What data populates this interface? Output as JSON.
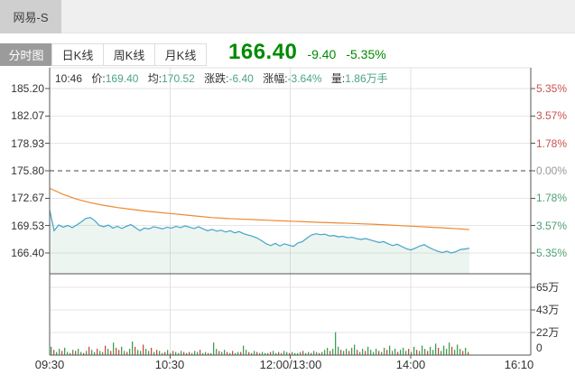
{
  "window": {
    "tab_label": "网易-S"
  },
  "toolbar": {
    "tabs": [
      {
        "label": "分时图",
        "active": true
      },
      {
        "label": "日K线",
        "active": false
      },
      {
        "label": "周K线",
        "active": false
      },
      {
        "label": "月K线",
        "active": false
      }
    ]
  },
  "quote": {
    "price": "166.40",
    "change": "-9.40",
    "change_pct": "-5.35%",
    "color": "#008a00"
  },
  "info_bar": {
    "time": "10:46",
    "items": [
      {
        "label": "价:",
        "value": "169.40"
      },
      {
        "label": "均:",
        "value": "170.52"
      },
      {
        "label": "涨跌:",
        "value": "-6.40"
      },
      {
        "label": "涨幅:",
        "value": "-3.64%"
      },
      {
        "label": "量:",
        "value": "1.86万手"
      }
    ],
    "value_color": "#4ba582"
  },
  "chart_data": {
    "type": "line",
    "title": "网易-S 分时图",
    "prev_close": 175.8,
    "grid": true,
    "y_axis_left": {
      "labels": [
        "185.20",
        "182.07",
        "178.93",
        "175.80",
        "172.67",
        "169.53",
        "166.40"
      ],
      "values": [
        185.2,
        182.07,
        178.93,
        175.8,
        172.67,
        169.53,
        166.4
      ]
    },
    "y_axis_right": {
      "labels": [
        {
          "text": "5.35%",
          "color": "#c9514d"
        },
        {
          "text": "3.57%",
          "color": "#c9514d"
        },
        {
          "text": "1.78%",
          "color": "#c9514d"
        },
        {
          "text": "0.00%",
          "color": "#999999"
        },
        {
          "text": "1.78%",
          "color": "#4e9e73"
        },
        {
          "text": "3.57%",
          "color": "#4e9e73"
        },
        {
          "text": "5.35%",
          "color": "#4e9e73"
        }
      ]
    },
    "x_axis": {
      "labels": [
        "09:30",
        "10:30",
        "12:00/13:00",
        "14:00",
        "16:10"
      ]
    },
    "series": [
      {
        "name": "price",
        "color": "#44a3c9",
        "x_start": 55,
        "x_step": 5,
        "values": [
          171.3,
          168.95,
          169.6,
          169.35,
          169.55,
          169.3,
          169.6,
          169.95,
          170.35,
          170.45,
          170.1,
          169.55,
          169.4,
          169.6,
          169.25,
          169.45,
          169.2,
          169.45,
          169.65,
          169.3,
          168.95,
          169.25,
          169.15,
          169.4,
          169.3,
          169.15,
          169.35,
          169.25,
          169.45,
          169.3,
          169.5,
          169.35,
          169.2,
          169.4,
          169.15,
          168.95,
          169.1,
          168.9,
          169.0,
          168.8,
          168.95,
          168.7,
          168.85,
          168.6,
          168.45,
          168.3,
          168.1,
          167.8,
          167.45,
          167.25,
          167.5,
          167.2,
          167.45,
          167.3,
          167.15,
          167.55,
          167.7,
          168.1,
          168.45,
          168.6,
          168.5,
          168.55,
          168.35,
          168.4,
          168.25,
          168.3,
          168.15,
          168.2,
          168.05,
          167.95,
          168.05,
          167.9,
          167.75,
          167.6,
          167.7,
          167.45,
          167.25,
          167.4,
          167.15,
          166.9,
          166.75,
          166.95,
          167.2,
          167.35,
          167.05,
          166.8,
          166.6,
          166.45,
          166.6,
          166.4,
          166.55,
          166.8,
          166.85,
          166.95
        ]
      },
      {
        "name": "average",
        "color": "#ee8a2f",
        "x_start": 55,
        "x_step": 15,
        "values": [
          173.8,
          173.1,
          172.55,
          172.15,
          171.85,
          171.6,
          171.4,
          171.2,
          171.05,
          170.9,
          170.75,
          170.6,
          170.45,
          170.35,
          170.28,
          170.22,
          170.15,
          170.08,
          170.02,
          169.96,
          169.9,
          169.85,
          169.8,
          169.74,
          169.68,
          169.6,
          169.52,
          169.44,
          169.36,
          169.28,
          169.18,
          169.08
        ]
      }
    ],
    "fill_color": "rgba(150,200,165,0.18)",
    "volume": {
      "axis_labels": [
        "65万",
        "43万",
        "22万",
        "0"
      ],
      "unit": "万",
      "x_start": 56,
      "x_step": 3,
      "green": "#3f9e50",
      "red": "#cc4743",
      "values": [
        8,
        5,
        3,
        6,
        4,
        7,
        3,
        2,
        5,
        4,
        6,
        3,
        2,
        4,
        8,
        5,
        3,
        6,
        4,
        3,
        9,
        6,
        4,
        12,
        7,
        5,
        8,
        4,
        3,
        6,
        13,
        8,
        5,
        4,
        10,
        6,
        4,
        7,
        3,
        5,
        4,
        2,
        3,
        5,
        2,
        4,
        3,
        2,
        4,
        3,
        2,
        3,
        2,
        4,
        3,
        5,
        2,
        3,
        2,
        2,
        12,
        6,
        4,
        3,
        5,
        3,
        2,
        4,
        2,
        3,
        3,
        9,
        5,
        3,
        2,
        4,
        3,
        2,
        3,
        2,
        2,
        3,
        4,
        2,
        3,
        2,
        4,
        3,
        2,
        3,
        2,
        2,
        3,
        4,
        2,
        3,
        2,
        4,
        3,
        2,
        3,
        5,
        7,
        4,
        6,
        22,
        8,
        5,
        4,
        6,
        4,
        7,
        10,
        5,
        3,
        6,
        4,
        8,
        5,
        3,
        6,
        4,
        3,
        7,
        5,
        9,
        4,
        6,
        3,
        5,
        7,
        4,
        6,
        3,
        8,
        5,
        4,
        9,
        6,
        4,
        8,
        5,
        11,
        7,
        4,
        9,
        6,
        12,
        8,
        5,
        10,
        6,
        4,
        7,
        3
      ],
      "colors": "grggrggrgrggrgrggrggrgrgrrggrggrggrggrgrggrggrgggrgrgggrggrgggrggrgrggrggrggrggggrggrgggrggggrggrggrgggrgggrggrggrggrggggrggrgggrgggrggrgggrgggrggggrgggrgr"
    }
  }
}
